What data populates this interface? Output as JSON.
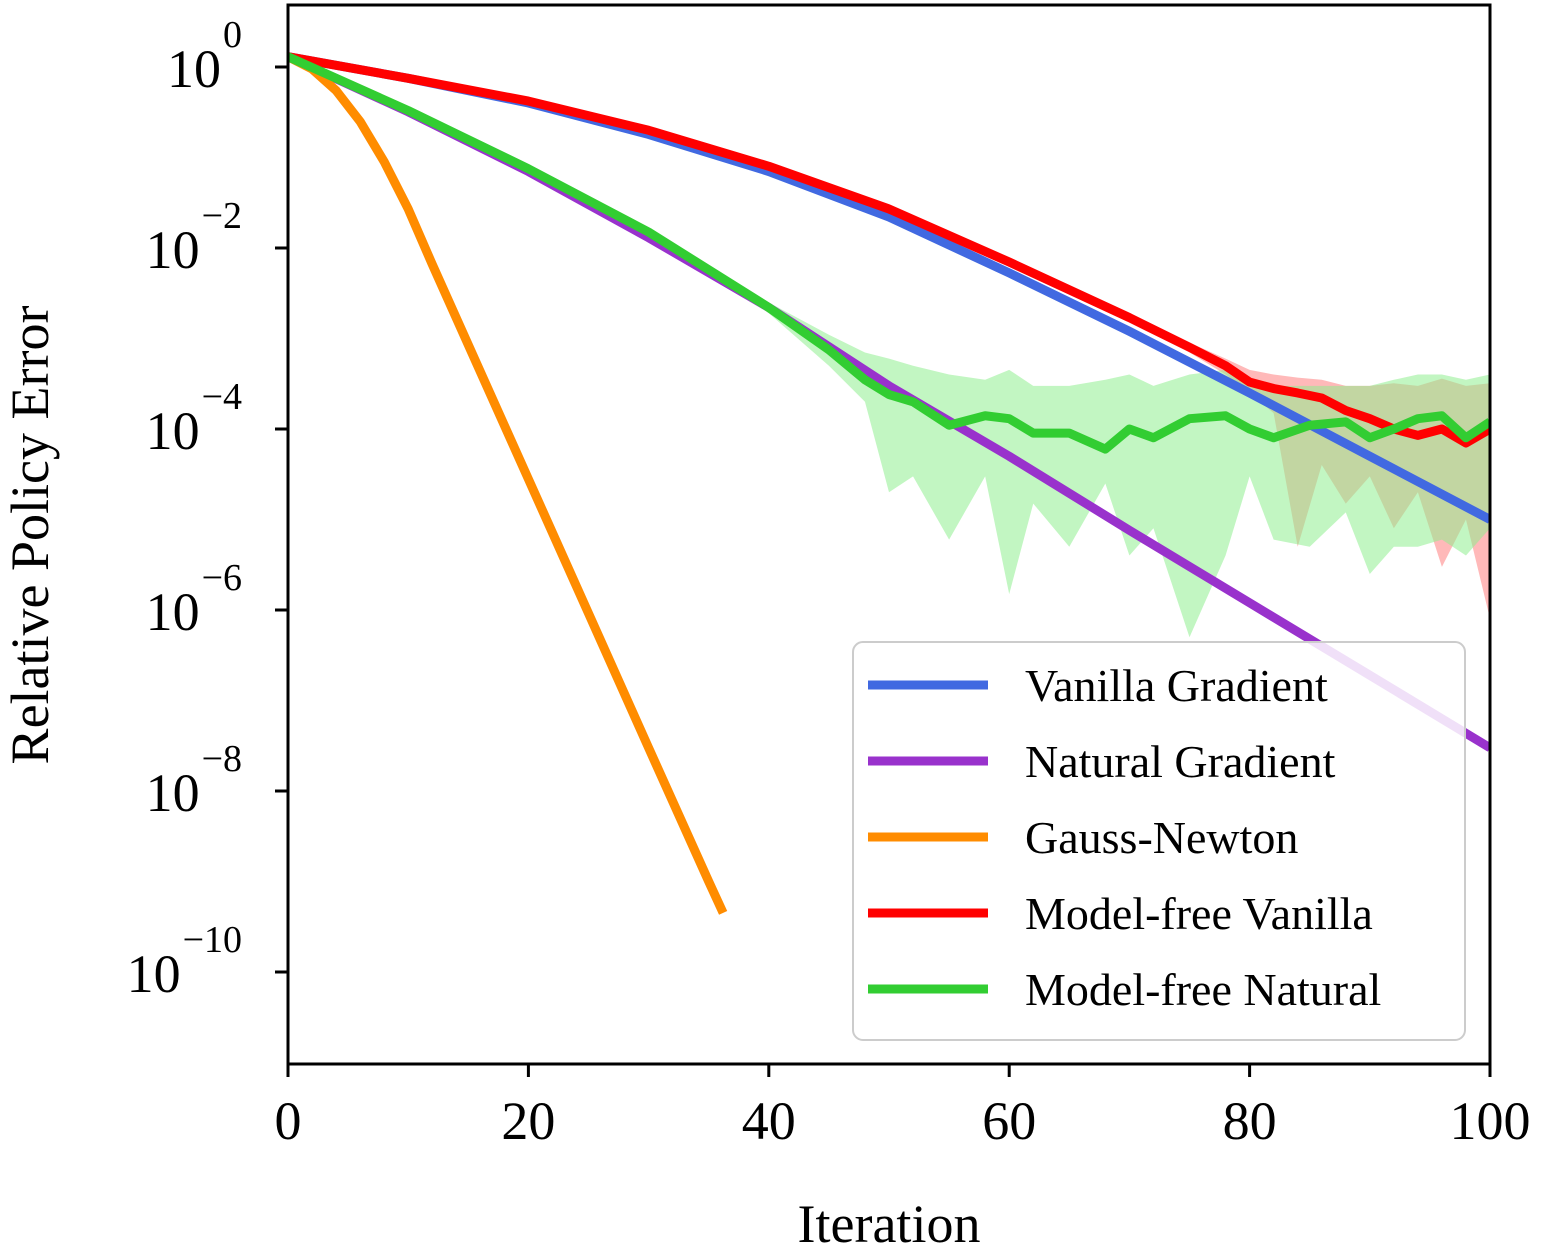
{
  "chart_data": {
    "type": "line",
    "title": "",
    "xlabel": "Iteration",
    "ylabel": "Relative Policy Error",
    "xlim": [
      0,
      100
    ],
    "ylim": [
      1e-11,
      5
    ],
    "yscale": "log",
    "grid": false,
    "legend_position": "lower-right",
    "x_ticks": [
      {
        "value": 0,
        "label": "0"
      },
      {
        "value": 20,
        "label": "20"
      },
      {
        "value": 40,
        "label": "40"
      },
      {
        "value": 60,
        "label": "60"
      },
      {
        "value": 80,
        "label": "80"
      },
      {
        "value": 100,
        "label": "100"
      }
    ],
    "y_ticks": [
      {
        "value": 1,
        "base": "10",
        "exp": "0"
      },
      {
        "value": 0.01,
        "base": "10",
        "exp": "−2"
      },
      {
        "value": 0.0001,
        "base": "10",
        "exp": "−4"
      },
      {
        "value": 1e-06,
        "base": "10",
        "exp": "−6"
      },
      {
        "value": 1e-08,
        "base": "10",
        "exp": "−8"
      },
      {
        "value": 1e-10,
        "base": "10",
        "exp": "−10"
      }
    ],
    "series": [
      {
        "name": "Vanilla Gradient",
        "color": "#4169e1",
        "x": [
          0,
          10,
          20,
          30,
          40,
          50,
          60,
          70,
          80,
          90,
          100
        ],
        "y": [
          1.3,
          0.75,
          0.4,
          0.18,
          0.07,
          0.022,
          0.0053,
          0.0012,
          0.00025,
          5e-05,
          1e-05
        ]
      },
      {
        "name": "Natural Gradient",
        "color": "#9932cc",
        "x": [
          0,
          10,
          20,
          30,
          40,
          50,
          60,
          70,
          80,
          90,
          100
        ],
        "y": [
          1.3,
          0.32,
          0.07,
          0.013,
          0.0022,
          0.0003,
          5e-05,
          7.6e-06,
          1.2e-06,
          1.9e-07,
          3e-08
        ]
      },
      {
        "name": "Gauss-Newton",
        "color": "#ff8c00",
        "x": [
          0,
          2,
          4,
          6,
          8,
          10,
          12,
          15,
          20,
          25,
          30,
          35,
          36.2
        ],
        "y": [
          1.3,
          0.95,
          0.55,
          0.25,
          0.09,
          0.027,
          0.0066,
          0.00085,
          2.8e-05,
          9.2e-07,
          3e-08,
          1e-09,
          4.5e-10
        ]
      },
      {
        "name": "Model-free Vanilla",
        "color": "#ff0000",
        "band_color": "#ff8080",
        "x": [
          0,
          10,
          20,
          30,
          40,
          50,
          60,
          70,
          75,
          78,
          80,
          82,
          84,
          86,
          88,
          90,
          92,
          94,
          96,
          98,
          100
        ],
        "y": [
          1.3,
          0.75,
          0.42,
          0.2,
          0.08,
          0.027,
          0.007,
          0.0017,
          0.0008,
          0.0005,
          0.00033,
          0.00028,
          0.00025,
          0.00022,
          0.00016,
          0.00013,
          0.0001,
          8.5e-05,
          0.0001,
          7e-05,
          0.0001
        ],
        "band_x": [
          0,
          10,
          20,
          30,
          40,
          50,
          60,
          70,
          75,
          78,
          80,
          82,
          84,
          86,
          88,
          90,
          92,
          94,
          96,
          98,
          100
        ],
        "band_upper": [
          1.35,
          0.78,
          0.44,
          0.21,
          0.084,
          0.028,
          0.0075,
          0.0019,
          0.0009,
          0.0006,
          0.00045,
          0.0004,
          0.00037,
          0.00035,
          0.0003,
          0.0003,
          0.00032,
          0.0003,
          0.00036,
          0.0003,
          0.00032
        ],
        "band_lower": [
          1.25,
          0.72,
          0.4,
          0.19,
          0.076,
          0.026,
          0.0065,
          0.0015,
          0.0007,
          0.0004,
          0.00025,
          0.00015,
          5e-06,
          4e-05,
          1.5e-05,
          3e-05,
          8e-06,
          2e-05,
          3e-06,
          1e-05,
          8e-07
        ]
      },
      {
        "name": "Model-free Natural",
        "color": "#32cd32",
        "band_color": "#90ee90",
        "x": [
          0,
          10,
          20,
          30,
          40,
          45,
          48,
          50,
          52,
          55,
          58,
          60,
          62,
          65,
          68,
          70,
          72,
          75,
          78,
          80,
          82,
          85,
          88,
          90,
          92,
          94,
          96,
          98,
          100
        ],
        "y": [
          1.3,
          0.33,
          0.075,
          0.015,
          0.0022,
          0.00075,
          0.00035,
          0.00024,
          0.0002,
          0.00011,
          0.00014,
          0.00013,
          9e-05,
          9e-05,
          6e-05,
          0.0001,
          8e-05,
          0.00013,
          0.00014,
          0.0001,
          8e-05,
          0.00011,
          0.00012,
          8e-05,
          0.0001,
          0.00013,
          0.00014,
          8e-05,
          0.00012
        ],
        "band_x": [
          0,
          10,
          20,
          30,
          40,
          45,
          48,
          50,
          52,
          55,
          58,
          60,
          62,
          65,
          68,
          70,
          72,
          75,
          78,
          80,
          82,
          85,
          88,
          90,
          92,
          94,
          96,
          98,
          100
        ],
        "band_upper": [
          1.35,
          0.35,
          0.08,
          0.016,
          0.0025,
          0.0011,
          0.0007,
          0.0006,
          0.0005,
          0.0004,
          0.00035,
          0.00045,
          0.0003,
          0.0003,
          0.00035,
          0.0004,
          0.0003,
          0.0004,
          0.00045,
          0.0003,
          0.0003,
          0.0003,
          0.0003,
          0.0003,
          0.00035,
          0.0004,
          0.0004,
          0.00035,
          0.0004
        ],
        "band_lower": [
          1.25,
          0.31,
          0.07,
          0.014,
          0.0019,
          0.0005,
          0.0002,
          2e-05,
          3e-05,
          6e-06,
          3e-05,
          1.5e-06,
          1.5e-05,
          5e-06,
          2.5e-05,
          4e-06,
          8e-06,
          5e-07,
          4e-06,
          3e-05,
          6e-06,
          5e-06,
          1.2e-05,
          2.5e-06,
          5e-06,
          5e-06,
          6e-06,
          4e-06,
          8e-06
        ]
      }
    ]
  }
}
